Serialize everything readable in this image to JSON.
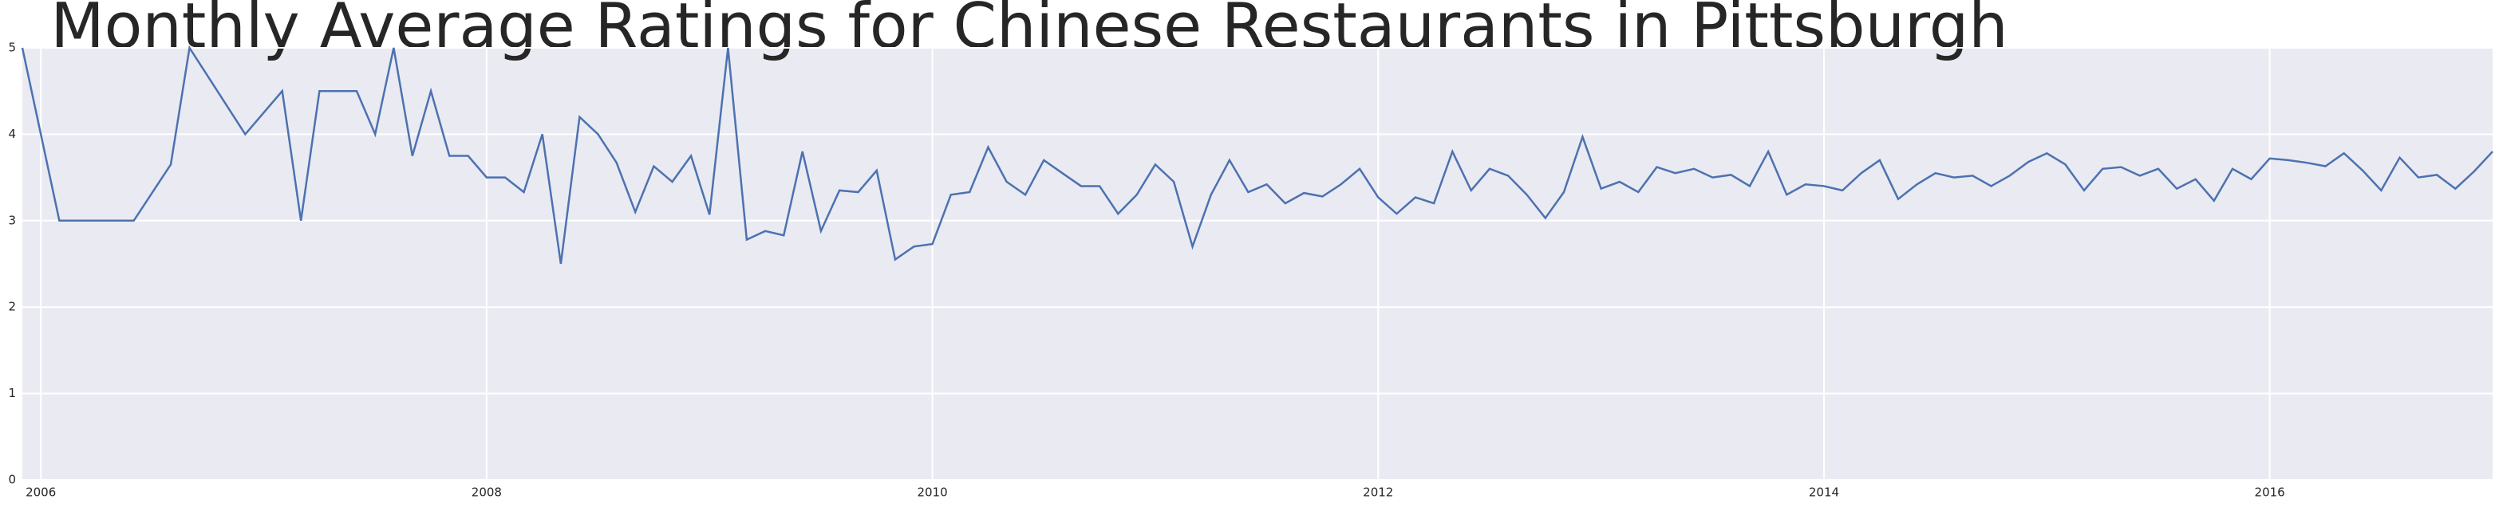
{
  "chart_data": {
    "type": "line",
    "title": "Monthly Average Ratings for Chinese Restaurants in Pittsburgh",
    "x": [
      2005.917,
      2006.083,
      2006.417,
      2006.583,
      2006.667,
      2006.917,
      2007.083,
      2007.167,
      2007.25,
      2007.417,
      2007.5,
      2007.583,
      2007.667,
      2007.75,
      2007.833,
      2007.917,
      2008.0,
      2008.083,
      2008.167,
      2008.25,
      2008.333,
      2008.417,
      2008.5,
      2008.583,
      2008.667,
      2008.75,
      2008.833,
      2008.917,
      2009.0,
      2009.083,
      2009.167,
      2009.25,
      2009.333,
      2009.417,
      2009.5,
      2009.583,
      2009.667,
      2009.75,
      2009.833,
      2009.917,
      2010.0,
      2010.083,
      2010.167,
      2010.25,
      2010.333,
      2010.417,
      2010.5,
      2010.583,
      2010.667,
      2010.75,
      2010.833,
      2010.917,
      2011.0,
      2011.083,
      2011.167,
      2011.25,
      2011.333,
      2011.417,
      2011.5,
      2011.583,
      2011.667,
      2011.75,
      2011.833,
      2011.917,
      2012.0,
      2012.083,
      2012.167,
      2012.25,
      2012.333,
      2012.417,
      2012.5,
      2012.583,
      2012.667,
      2012.75,
      2012.833,
      2012.917,
      2013.0,
      2013.083,
      2013.167,
      2013.25,
      2013.333,
      2013.417,
      2013.5,
      2013.583,
      2013.667,
      2013.75,
      2013.833,
      2013.917,
      2014.0,
      2014.083,
      2014.167,
      2014.25,
      2014.333,
      2014.417,
      2014.5,
      2014.583,
      2014.667,
      2014.75,
      2014.833,
      2014.917,
      2015.0,
      2015.083,
      2015.167,
      2015.25,
      2015.333,
      2015.417,
      2015.5,
      2015.583,
      2015.667,
      2015.75,
      2015.833,
      2015.917,
      2016.0,
      2016.083,
      2016.167,
      2016.25,
      2016.333,
      2016.417,
      2016.5,
      2016.583,
      2016.667,
      2016.75,
      2016.833,
      2016.917,
      2017.0
    ],
    "series": [
      {
        "color": "#4c72b0",
        "values": [
          5.0,
          3.0,
          3.0,
          3.65,
          5.0,
          4.0,
          4.5,
          3.0,
          4.5,
          4.5,
          4.0,
          5.0,
          3.75,
          4.5,
          3.75,
          3.75,
          3.5,
          3.5,
          3.33,
          4.0,
          2.5,
          4.2,
          4.0,
          3.67,
          3.1,
          3.63,
          3.45,
          3.75,
          3.07,
          5.0,
          2.78,
          2.88,
          2.83,
          3.8,
          2.88,
          3.35,
          3.33,
          3.58,
          2.55,
          2.7,
          2.73,
          3.3,
          3.33,
          3.85,
          3.45,
          3.3,
          3.7,
          3.55,
          3.4,
          3.4,
          3.08,
          3.3,
          3.65,
          3.45,
          2.7,
          3.3,
          3.7,
          3.33,
          3.42,
          3.2,
          3.32,
          3.28,
          3.42,
          3.6,
          3.27,
          3.08,
          3.27,
          3.2,
          3.8,
          3.35,
          3.6,
          3.52,
          3.3,
          3.03,
          3.33,
          3.97,
          3.37,
          3.45,
          3.33,
          3.62,
          3.55,
          3.6,
          3.5,
          3.53,
          3.4,
          3.8,
          3.3,
          3.42,
          3.4,
          3.35,
          3.55,
          3.7,
          3.25,
          3.42,
          3.55,
          3.5,
          3.52,
          3.4,
          3.52,
          3.68,
          3.78,
          3.65,
          3.35,
          3.6,
          3.62,
          3.52,
          3.6,
          3.37,
          3.48,
          3.23,
          3.6,
          3.48,
          3.72,
          3.7,
          3.67,
          3.63,
          3.78,
          3.58,
          3.35,
          3.73,
          3.5,
          3.53,
          3.37,
          3.57,
          3.8
        ]
      }
    ],
    "xlim": [
      2005.917,
      2017.0
    ],
    "xticks": [
      2006,
      2008,
      2010,
      2012,
      2014,
      2016
    ],
    "ylim": [
      0,
      5
    ],
    "yticks": [
      0,
      1,
      2,
      3,
      4,
      5
    ],
    "grid": true
  }
}
